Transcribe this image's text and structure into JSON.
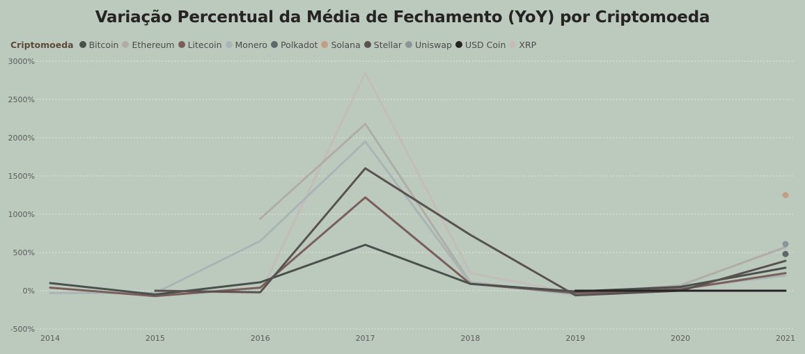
{
  "chart_data": {
    "type": "line",
    "title": "Variação Percentual da Média de Fechamento (YoY) por Criptomoeda",
    "legend_title": "Criptomoeda",
    "xlabel": "",
    "ylabel": "",
    "x": [
      "2014",
      "2015",
      "2016",
      "2017",
      "2018",
      "2019",
      "2020",
      "2021"
    ],
    "ylim": [
      -500,
      3000
    ],
    "yticks": [
      -500,
      0,
      500,
      1000,
      1500,
      2000,
      2500,
      3000
    ],
    "ytick_labels": [
      "-500%",
      "0%",
      "500%",
      "1000%",
      "1500%",
      "2000%",
      "2500%",
      "3000%"
    ],
    "grid": true,
    "legend_position": "top-left",
    "series": [
      {
        "name": "Bitcoin",
        "color": "#4a504c",
        "values": [
          100,
          -50,
          110,
          600,
          90,
          -10,
          50,
          300
        ]
      },
      {
        "name": "Ethereum",
        "color": "#b0aca6",
        "values": [
          null,
          null,
          940,
          2180,
          110,
          -40,
          70,
          570
        ]
      },
      {
        "name": "Litecoin",
        "color": "#7a5e5a",
        "values": [
          40,
          -70,
          40,
          1220,
          90,
          -30,
          20,
          230
        ]
      },
      {
        "name": "Monero",
        "color": "#a9b5b5",
        "values": [
          -30,
          -30,
          650,
          1950,
          100,
          -50,
          30,
          200
        ]
      },
      {
        "name": "Polkadot",
        "color": "#5f6868",
        "values": [
          null,
          null,
          null,
          null,
          null,
          null,
          null,
          480
        ]
      },
      {
        "name": "Solana",
        "color": "#c49e83",
        "values": [
          null,
          null,
          null,
          null,
          null,
          null,
          null,
          1250
        ]
      },
      {
        "name": "Stellar",
        "color": "#585250",
        "values": [
          null,
          0,
          -20,
          1600,
          730,
          -60,
          0,
          390
        ]
      },
      {
        "name": "Uniswap",
        "color": "#8b949a",
        "values": [
          null,
          null,
          null,
          null,
          null,
          null,
          null,
          610
        ]
      },
      {
        "name": "USD Coin",
        "color": "#252423",
        "values": [
          null,
          null,
          null,
          null,
          null,
          0,
          0,
          0
        ]
      },
      {
        "name": "XRP",
        "color": "#c3bdb9",
        "values": [
          null,
          -20,
          -30,
          2850,
          230,
          -30,
          20,
          210
        ]
      }
    ]
  }
}
